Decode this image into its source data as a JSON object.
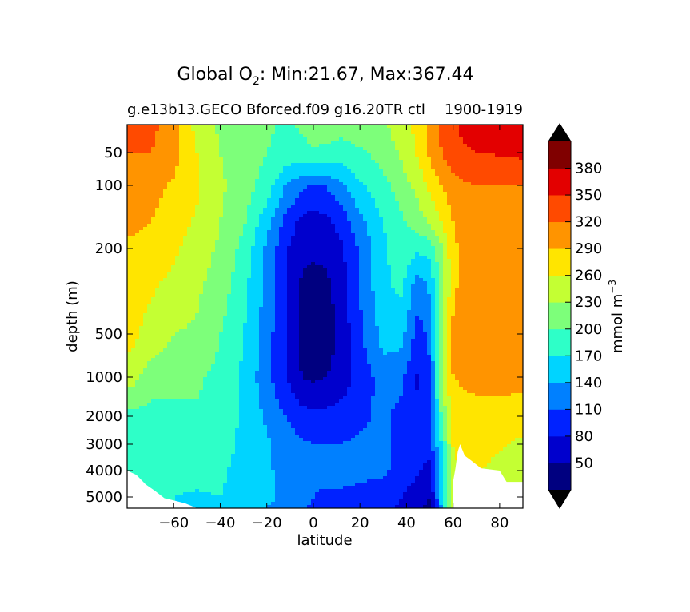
{
  "chart_data": {
    "type": "heatmap",
    "title_prefix": "Global O",
    "title_subscript": "2",
    "title_rest": ": Min:21.67, Max:367.44",
    "subtitle": "g.e13b13.GECO Bforced.f09 g16.20TR ctl",
    "subtitle_years": "1900-1919",
    "xlabel": "latitude",
    "ylabel": "depth (m)",
    "xlim": [
      -80,
      90
    ],
    "xticks": [
      -60,
      -40,
      -20,
      0,
      20,
      40,
      60,
      80
    ],
    "yticks": [
      50,
      100,
      200,
      500,
      1000,
      2000,
      3000,
      4000,
      5000
    ],
    "colorbar": {
      "label": "mmol m",
      "label_exponent": "−3",
      "extend": "both",
      "levels": [
        20,
        50,
        80,
        110,
        140,
        170,
        200,
        230,
        260,
        290,
        320,
        350,
        380,
        410
      ],
      "tick_labels": [
        50,
        80,
        110,
        140,
        170,
        200,
        230,
        260,
        290,
        320,
        350,
        380
      ],
      "colors": [
        "#000080",
        "#0000cd",
        "#0022ff",
        "#0080ff",
        "#00d4ff",
        "#2effc8",
        "#7dff7a",
        "#c4ff33",
        "#ffe500",
        "#ff9400",
        "#ff4a00",
        "#e30000",
        "#800000"
      ],
      "under_color": "#000000",
      "over_color": "#000000"
    },
    "fields": {
      "lats": [
        -78,
        -70,
        -60,
        -50,
        -40,
        -30,
        -20,
        -12,
        -5,
        0,
        5,
        12,
        20,
        30,
        38,
        45,
        50,
        55,
        60,
        65,
        70,
        80,
        90
      ],
      "depths": [
        25,
        50,
        100,
        150,
        200,
        300,
        500,
        1000,
        2000,
        3000,
        4000,
        5000,
        5500
      ],
      "o2": [
        [
          330,
          330,
          300,
          250,
          225,
          215,
          205,
          195,
          205,
          215,
          215,
          210,
          215,
          225,
          245,
          270,
          300,
          325,
          345,
          360,
          362,
          365,
          365
        ],
        [
          320,
          320,
          300,
          260,
          230,
          215,
          200,
          185,
          185,
          195,
          190,
          185,
          195,
          210,
          235,
          265,
          295,
          320,
          335,
          345,
          350,
          352,
          355
        ],
        [
          300,
          300,
          285,
          265,
          235,
          215,
          185,
          140,
          115,
          105,
          110,
          130,
          165,
          190,
          215,
          240,
          265,
          290,
          305,
          315,
          320,
          320,
          320
        ],
        [
          295,
          290,
          275,
          255,
          230,
          205,
          150,
          100,
          70,
          65,
          70,
          90,
          130,
          170,
          195,
          215,
          235,
          260,
          290,
          310,
          315,
          318,
          320
        ],
        [
          285,
          280,
          265,
          245,
          225,
          190,
          135,
          85,
          60,
          60,
          60,
          75,
          115,
          165,
          185,
          175,
          180,
          225,
          280,
          305,
          312,
          315,
          315
        ],
        [
          275,
          265,
          250,
          235,
          215,
          180,
          130,
          80,
          45,
          30,
          40,
          65,
          110,
          165,
          175,
          120,
          145,
          210,
          285,
          300,
          305,
          305,
          305
        ],
        [
          270,
          245,
          230,
          225,
          200,
          170,
          125,
          80,
          40,
          25,
          30,
          60,
          105,
          150,
          150,
          95,
          120,
          215,
          295,
          300,
          305,
          305,
          305
        ],
        [
          240,
          215,
          210,
          205,
          190,
          165,
          120,
          85,
          50,
          45,
          50,
          65,
          90,
          125,
          115,
          75,
          100,
          230,
          290,
          295,
          300,
          300,
          300
        ],
        [
          190,
          185,
          190,
          195,
          185,
          165,
          135,
          110,
          95,
          90,
          90,
          95,
          105,
          115,
          100,
          85,
          95,
          200,
          270,
          275,
          275,
          275,
          270
        ],
        [
          180,
          180,
          180,
          185,
          180,
          165,
          145,
          125,
          115,
          110,
          110,
          110,
          115,
          115,
          105,
          95,
          95,
          170,
          262,
          265,
          265,
          262,
          255
        ],
        [
          175,
          175,
          175,
          175,
          175,
          160,
          145,
          130,
          125,
          120,
          118,
          118,
          118,
          115,
          100,
          85,
          65,
          160,
          255,
          262,
          262,
          255,
          245
        ],
        [
          175,
          175,
          170,
          168,
          170,
          160,
          145,
          135,
          120,
          110,
          105,
          105,
          100,
          95,
          80,
          60,
          50,
          150,
          245,
          260,
          260,
          250,
          240
        ],
        [
          175,
          175,
          170,
          165,
          165,
          155,
          140,
          130,
          115,
          105,
          100,
          98,
          95,
          90,
          75,
          55,
          45,
          140,
          235,
          250,
          250,
          240,
          235
        ]
      ],
      "seafloor": [
        [
          -80,
          4000
        ],
        [
          -76,
          4150
        ],
        [
          -72,
          4500
        ],
        [
          -68,
          4750
        ],
        [
          -64,
          5050
        ],
        [
          -60,
          5150
        ],
        [
          -55,
          5280
        ],
        [
          -50,
          5500
        ],
        [
          60,
          5500
        ],
        [
          60,
          4400
        ],
        [
          61,
          3900
        ],
        [
          62,
          3250
        ],
        [
          63,
          3000
        ],
        [
          65,
          3400
        ],
        [
          68,
          3600
        ],
        [
          72,
          3900
        ],
        [
          80,
          4000
        ],
        [
          83,
          4400
        ],
        [
          90,
          4400
        ]
      ]
    }
  }
}
